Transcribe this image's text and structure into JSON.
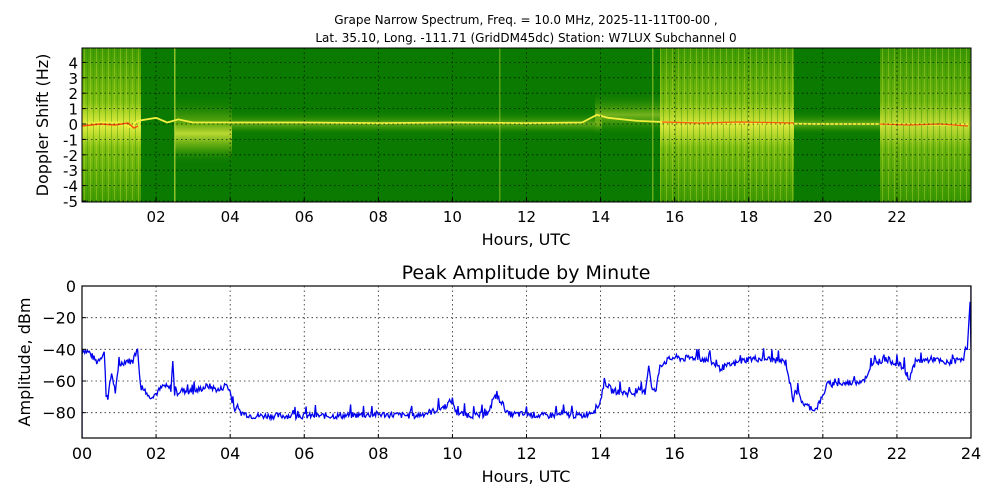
{
  "chart_data": [
    {
      "type": "heatmap",
      "title": "Grape Narrow Spectrum, Freq. = 10.0 MHz, 2025-11-11T00-00 ,",
      "subtitle": "Lat.  35.10, Long. -111.71 (GridDM45dc) Station: W7LUX Subchannel 0",
      "xlabel": "Hours, UTC",
      "ylabel": "Doppler Shift (Hz)",
      "xticks": [
        "02",
        "04",
        "06",
        "08",
        "10",
        "12",
        "14",
        "16",
        "18",
        "20",
        "22"
      ],
      "yticks": [
        "4",
        "3",
        "2",
        "1",
        "0",
        "-1",
        "-2",
        "-3",
        "-4",
        "-5"
      ],
      "xlim": [
        0,
        24
      ],
      "ylim": [
        -5,
        5
      ],
      "grid": true,
      "colors": {
        "background": "#0a7a00",
        "mid": "#9acd32",
        "high": "#ffff33",
        "peak": "#ff3300"
      },
      "bright_regions_hours": [
        [
          0,
          1.6
        ],
        [
          2.5,
          4.0
        ],
        [
          15.6,
          19.2
        ],
        [
          21.4,
          24
        ]
      ],
      "carrier_trace_hz": {
        "x": [
          0,
          0.5,
          1,
          1.3,
          1.5,
          2,
          2.3,
          2.6,
          3,
          4,
          6,
          8,
          10,
          12,
          13.5,
          13.9,
          14.2,
          15,
          16,
          18,
          20,
          22,
          23.5,
          24
        ],
        "y": [
          0,
          0.1,
          0.1,
          -0.2,
          0.2,
          0.4,
          0.1,
          0.3,
          0.1,
          0.1,
          0.1,
          0.05,
          0.1,
          0.05,
          0.1,
          0.6,
          0.4,
          0.2,
          0.1,
          0.05,
          0,
          0,
          -0.05,
          0
        ]
      }
    },
    {
      "type": "line",
      "title": "Peak Amplitude by Minute",
      "xlabel": "Hours, UTC",
      "ylabel": "Amplitude, dBm",
      "xticks": [
        "00",
        "02",
        "04",
        "06",
        "08",
        "10",
        "12",
        "14",
        "16",
        "18",
        "20",
        "22",
        "24"
      ],
      "yticks": [
        "0",
        "−20",
        "−40",
        "−60",
        "−80"
      ],
      "xlim": [
        0,
        24
      ],
      "ylim": [
        -96,
        0
      ],
      "grid": true,
      "series": [
        {
          "name": "Peak Amplitude",
          "color": "#0000ee",
          "x": [
            0,
            0.2,
            0.4,
            0.6,
            0.65,
            0.7,
            0.8,
            0.9,
            1.0,
            1.2,
            1.4,
            1.5,
            1.6,
            1.7,
            1.8,
            2.0,
            2.2,
            2.4,
            2.45,
            2.5,
            2.7,
            3.0,
            3.4,
            3.7,
            3.9,
            4.0,
            4.1,
            4.3,
            4.6,
            5.0,
            6.0,
            7.0,
            8.0,
            9.0,
            9.5,
            9.8,
            10.0,
            10.1,
            10.3,
            10.7,
            11.0,
            11.1,
            11.3,
            11.5,
            12.0,
            12.5,
            13.0,
            13.5,
            13.9,
            14.0,
            14.1,
            14.3,
            14.8,
            15.2,
            15.3,
            15.4,
            15.5,
            15.6,
            15.8,
            16.0,
            16.2,
            16.6,
            17.0,
            17.2,
            17.5,
            18.0,
            18.5,
            19.0,
            19.2,
            19.25,
            19.5,
            19.8,
            20.0,
            20.1,
            20.5,
            21.0,
            21.2,
            21.4,
            21.5,
            21.7,
            22.0,
            22.2,
            22.3,
            22.5,
            23.0,
            23.3,
            23.6,
            23.8,
            23.9,
            24.0
          ],
          "y": [
            -40,
            -42,
            -48,
            -42,
            -68,
            -70,
            -55,
            -67,
            -50,
            -47,
            -48,
            -40,
            -67,
            -65,
            -70,
            -68,
            -63,
            -65,
            -48,
            -68,
            -66,
            -67,
            -63,
            -66,
            -62,
            -67,
            -77,
            -80,
            -82,
            -82,
            -82,
            -82,
            -81,
            -82,
            -79,
            -76,
            -72,
            -80,
            -81,
            -82,
            -80,
            -70,
            -72,
            -81,
            -81,
            -82,
            -81,
            -82,
            -78,
            -72,
            -60,
            -66,
            -68,
            -67,
            -50,
            -66,
            -66,
            -50,
            -47,
            -45,
            -46,
            -45,
            -48,
            -52,
            -50,
            -46,
            -46,
            -48,
            -72,
            -65,
            -75,
            -78,
            -70,
            -62,
            -62,
            -60,
            -58,
            -45,
            -48,
            -46,
            -49,
            -52,
            -60,
            -48,
            -46,
            -49,
            -47,
            -45,
            -40,
            0
          ]
        }
      ]
    }
  ],
  "top": {
    "title_line1": "Grape Narrow Spectrum, Freq. = 10.0 MHz, 2025-11-11T00-00 ,",
    "title_line2": "Lat.  35.10, Long. -111.71 (GridDM45dc) Station: W7LUX Subchannel 0",
    "xlabel": "Hours, UTC",
    "ylabel": "Doppler Shift (Hz)"
  },
  "bottom": {
    "title": "Peak Amplitude by Minute",
    "xlabel": "Hours, UTC",
    "ylabel": "Amplitude, dBm"
  }
}
